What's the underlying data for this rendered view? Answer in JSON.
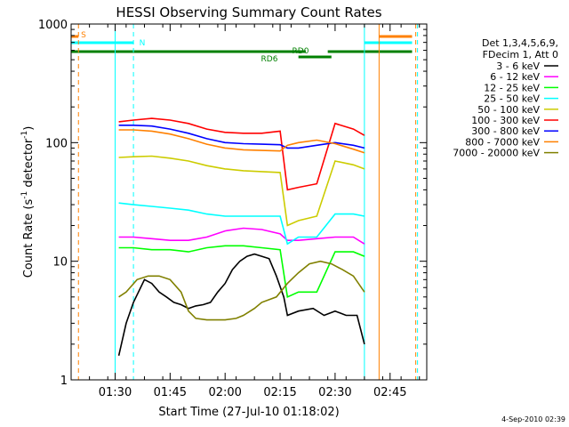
{
  "chart_data": {
    "type": "line",
    "title": "HESSI Observing Summary Count Rates",
    "xlabel": "Start Time (27-Jul-10 01:18:02)",
    "ylabel_main": "Count Rate (s",
    "ylabel_sup1": "-1",
    "ylabel_mid": " detector",
    "ylabel_sup2": "-1",
    "ylabel_end": ")",
    "yscale": "log",
    "xlim": [
      "01:18",
      "02:55"
    ],
    "ylim": [
      1,
      1000
    ],
    "xticks": [
      "01:30",
      "01:45",
      "02:00",
      "02:15",
      "02:30",
      "02:45"
    ],
    "yticks": [
      "1",
      "10",
      "100",
      "1000"
    ],
    "legend_header": [
      "Det 1,3,4,5,6,9,",
      "FDecim 1, Att 0"
    ],
    "series": [
      {
        "name": "3 - 6 keV",
        "color": "#000000",
        "x": [
          "01:31",
          "01:33",
          "01:35",
          "01:38",
          "01:40",
          "01:42",
          "01:44",
          "01:46",
          "01:48",
          "01:50",
          "01:52",
          "01:54",
          "01:56",
          "01:58",
          "02:00",
          "02:02",
          "02:04",
          "02:06",
          "02:08",
          "02:10",
          "02:12",
          "02:14",
          "02:16",
          "02:17",
          "02:20",
          "02:24",
          "02:27",
          "02:30",
          "02:33",
          "02:36",
          "02:38"
        ],
        "y": [
          1.6,
          3.0,
          4.5,
          7.0,
          6.5,
          5.5,
          5.0,
          4.5,
          4.3,
          4.0,
          4.2,
          4.3,
          4.5,
          5.5,
          6.5,
          8.5,
          10.0,
          11.0,
          11.5,
          11.0,
          10.5,
          7.5,
          5.0,
          3.5,
          3.8,
          4.0,
          3.5,
          3.8,
          3.5,
          3.5,
          2.0
        ]
      },
      {
        "name": "6 - 12 keV",
        "color": "#ff00ff",
        "x": [
          "01:31",
          "01:35",
          "01:40",
          "01:45",
          "01:50",
          "01:55",
          "02:00",
          "02:05",
          "02:10",
          "02:15",
          "02:17",
          "02:20",
          "02:25",
          "02:30",
          "02:35",
          "02:38"
        ],
        "y": [
          16,
          16,
          15.5,
          15,
          15,
          16,
          18,
          19,
          18.5,
          17,
          15,
          15,
          15.5,
          16,
          16,
          14
        ]
      },
      {
        "name": "12 - 25 keV",
        "color": "#00ff00",
        "x": [
          "01:31",
          "01:35",
          "01:40",
          "01:45",
          "01:50",
          "01:55",
          "02:00",
          "02:05",
          "02:10",
          "02:15",
          "02:17",
          "02:20",
          "02:25",
          "02:30",
          "02:35",
          "02:38"
        ],
        "y": [
          13,
          13,
          12.5,
          12.5,
          12,
          13,
          13.5,
          13.5,
          13,
          12.5,
          5,
          5.5,
          5.5,
          12,
          12,
          11
        ]
      },
      {
        "name": "25 - 50 keV",
        "color": "#00ffff",
        "x": [
          "01:31",
          "01:35",
          "01:40",
          "01:45",
          "01:50",
          "01:55",
          "02:00",
          "02:05",
          "02:10",
          "02:15",
          "02:17",
          "02:20",
          "02:25",
          "02:30",
          "02:35",
          "02:38"
        ],
        "y": [
          31,
          30,
          29,
          28,
          27,
          25,
          24,
          24,
          24,
          24,
          14,
          16,
          16,
          25,
          25,
          24
        ]
      },
      {
        "name": "50 - 100 keV",
        "color": "#cccc00",
        "x": [
          "01:31",
          "01:35",
          "01:40",
          "01:45",
          "01:50",
          "01:55",
          "02:00",
          "02:05",
          "02:10",
          "02:15",
          "02:17",
          "02:20",
          "02:25",
          "02:30",
          "02:35",
          "02:38"
        ],
        "y": [
          75,
          76,
          77,
          74,
          70,
          64,
          60,
          58,
          57,
          56,
          20,
          22,
          24,
          70,
          65,
          60
        ]
      },
      {
        "name": "100 - 300 keV",
        "color": "#ff0000",
        "x": [
          "01:31",
          "01:35",
          "01:40",
          "01:45",
          "01:50",
          "01:55",
          "02:00",
          "02:05",
          "02:10",
          "02:15",
          "02:17",
          "02:20",
          "02:25",
          "02:30",
          "02:35",
          "02:38"
        ],
        "y": [
          150,
          155,
          160,
          155,
          145,
          130,
          122,
          120,
          120,
          125,
          40,
          42,
          45,
          145,
          130,
          115
        ]
      },
      {
        "name": "300 - 800 keV",
        "color": "#0000ff",
        "x": [
          "01:31",
          "01:35",
          "01:40",
          "01:45",
          "01:50",
          "01:55",
          "02:00",
          "02:05",
          "02:10",
          "02:15",
          "02:17",
          "02:20",
          "02:25",
          "02:30",
          "02:35",
          "02:38"
        ],
        "y": [
          140,
          140,
          138,
          130,
          120,
          108,
          100,
          98,
          97,
          96,
          90,
          90,
          95,
          100,
          95,
          90
        ]
      },
      {
        "name": "800 - 7000 keV",
        "color": "#ff8000",
        "x": [
          "01:31",
          "01:35",
          "01:40",
          "01:45",
          "01:50",
          "01:55",
          "02:00",
          "02:05",
          "02:10",
          "02:15",
          "02:17",
          "02:20",
          "02:25",
          "02:30",
          "02:35",
          "02:38"
        ],
        "y": [
          128,
          128,
          125,
          118,
          108,
          97,
          90,
          87,
          86,
          85,
          95,
          100,
          105,
          98,
          88,
          82
        ]
      },
      {
        "name": "7000 - 20000 keV",
        "color": "#808000",
        "x": [
          "01:31",
          "01:33",
          "01:36",
          "01:39",
          "01:42",
          "01:45",
          "01:48",
          "01:50",
          "01:52",
          "01:55",
          "01:58",
          "02:00",
          "02:03",
          "02:05",
          "02:08",
          "02:10",
          "02:14",
          "02:17",
          "02:20",
          "02:23",
          "02:26",
          "02:29",
          "02:32",
          "02:35",
          "02:38"
        ],
        "y": [
          5,
          5.5,
          7,
          7.5,
          7.5,
          7,
          5.5,
          3.8,
          3.3,
          3.2,
          3.2,
          3.2,
          3.3,
          3.5,
          4.0,
          4.5,
          5,
          6.5,
          8,
          9.5,
          10,
          9.5,
          8.5,
          7.5,
          5.5
        ]
      }
    ],
    "flags": [
      {
        "label": "S",
        "color": "#ff8000",
        "kind": "band",
        "segments": [
          [
            "01:18",
            "01:20"
          ],
          [
            "02:42",
            "02:51"
          ]
        ]
      },
      {
        "label": "N",
        "color": "#00ffff",
        "kind": "band",
        "segments": [
          [
            "01:18",
            "01:35"
          ],
          [
            "02:38",
            "02:51"
          ]
        ]
      },
      {
        "label": "RD0",
        "color": "#008000",
        "kind": "band",
        "segments": [
          [
            "01:18",
            "02:22"
          ],
          [
            "02:28",
            "02:51"
          ]
        ]
      },
      {
        "label": "RD6",
        "color": "#008000",
        "kind": "band",
        "segments": [
          [
            "02:20",
            "02:29"
          ]
        ]
      }
    ],
    "vlines": [
      {
        "t": "01:18",
        "color": "#00ffff",
        "style": "solid"
      },
      {
        "t": "01:20",
        "color": "#ff8000",
        "style": "dashed"
      },
      {
        "t": "01:30",
        "color": "#00ffff",
        "style": "solid"
      },
      {
        "t": "01:35",
        "color": "#00ffff",
        "style": "dashed"
      },
      {
        "t": "02:38",
        "color": "#00ffff",
        "style": "solid"
      },
      {
        "t": "02:42",
        "color": "#ff8000",
        "style": "solid"
      },
      {
        "t": "02:52",
        "color": "#ff8000",
        "style": "dashed"
      },
      {
        "t": "02:52",
        "color": "#00ffff",
        "style": "dashed"
      }
    ],
    "footer_date": "4-Sep-2010 02:39"
  }
}
